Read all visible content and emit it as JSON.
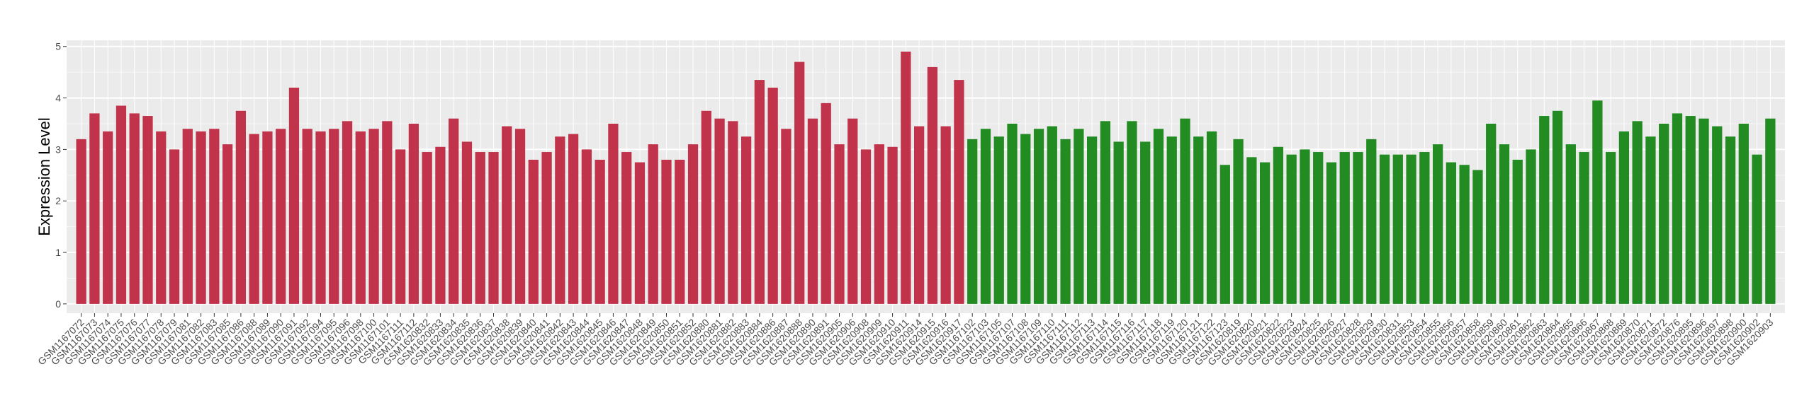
{
  "chart_data": {
    "type": "bar",
    "y_label": "Expression Level",
    "categories": [
      "GSM1167072",
      "GSM1167073",
      "GSM1167074",
      "GSM1167075",
      "GSM1167076",
      "GSM1167077",
      "GSM1167078",
      "GSM1167079",
      "GSM1167081",
      "GSM1167082",
      "GSM1167083",
      "GSM1167085",
      "GSM1167086",
      "GSM1167088",
      "GSM1167089",
      "GSM1167090",
      "GSM1167091",
      "GSM1167092",
      "GSM1167094",
      "GSM1167095",
      "GSM1167096",
      "GSM1167098",
      "GSM1167100",
      "GSM1167101",
      "GSM1167111",
      "GSM1167112",
      "GSM1620832",
      "GSM1620833",
      "GSM1620834",
      "GSM1620835",
      "GSM1620836",
      "GSM1620837",
      "GSM1620838",
      "GSM1620839",
      "GSM1620840",
      "GSM1620841",
      "GSM1620842",
      "GSM1620843",
      "GSM1620844",
      "GSM1620845",
      "GSM1620846",
      "GSM1620847",
      "GSM1620848",
      "GSM1620849",
      "GSM1620850",
      "GSM1620851",
      "GSM1620852",
      "GSM1620880",
      "GSM1620881",
      "GSM1620882",
      "GSM1620883",
      "GSM1620884",
      "GSM1620886",
      "GSM1620887",
      "GSM1620888",
      "GSM1620890",
      "GSM1620891",
      "GSM1620905",
      "GSM1620906",
      "GSM1620908",
      "GSM1620909",
      "GSM1620910",
      "GSM1620911",
      "GSM1620914",
      "GSM1620915",
      "GSM1620916",
      "GSM1620917",
      "GSM1167102",
      "GSM1167103",
      "GSM1167105",
      "GSM1167107",
      "GSM1167108",
      "GSM1167109",
      "GSM1167110",
      "GSM1167111",
      "GSM1167112",
      "GSM1167113",
      "GSM1167114",
      "GSM1167115",
      "GSM1167116",
      "GSM1167117",
      "GSM1167118",
      "GSM1167119",
      "GSM1167120",
      "GSM1167121",
      "GSM1167122",
      "GSM1167123",
      "GSM1620819",
      "GSM1620820",
      "GSM1620821",
      "GSM1620822",
      "GSM1620823",
      "GSM1620824",
      "GSM1620825",
      "GSM1620826",
      "GSM1620827",
      "GSM1620828",
      "GSM1620829",
      "GSM1620830",
      "GSM1620831",
      "GSM1620853",
      "GSM1620854",
      "GSM1620855",
      "GSM1620856",
      "GSM1620857",
      "GSM1620858",
      "GSM1620859",
      "GSM1620860",
      "GSM1620861",
      "GSM1620862",
      "GSM1620863",
      "GSM1620864",
      "GSM1620865",
      "GSM1620866",
      "GSM1620867",
      "GSM1620868",
      "GSM1620869",
      "GSM1620870",
      "GSM1620871",
      "GSM1620872",
      "GSM1620876",
      "GSM1620895",
      "GSM1620896",
      "GSM1620897",
      "GSM1620898",
      "GSM1620900",
      "GSM1620902",
      "GSM1620903"
    ],
    "series": [
      {
        "color": "#c0334a",
        "values": [
          3.2,
          3.7,
          3.35,
          3.85,
          3.7,
          3.65,
          3.35,
          3.0,
          3.4,
          3.35,
          3.4,
          3.1,
          3.75,
          3.3,
          3.35,
          3.4,
          4.2,
          3.4,
          3.35,
          3.4,
          3.55,
          3.35,
          3.4,
          3.55,
          3.0,
          3.5,
          2.95,
          3.05,
          3.6,
          3.15,
          2.95,
          2.95,
          3.45,
          3.4,
          2.8,
          2.95,
          3.25,
          3.3,
          3.0,
          2.8,
          3.5,
          2.95,
          2.75,
          3.1,
          2.8,
          2.8,
          3.1,
          3.75,
          3.6,
          3.55,
          3.25,
          4.35,
          4.2,
          3.4,
          4.7,
          3.6,
          3.9,
          3.1,
          3.6,
          3.0,
          3.1,
          3.05,
          4.9,
          3.45,
          4.6,
          3.45,
          4.35,
          null,
          null,
          null,
          null,
          null,
          null,
          null,
          null,
          null,
          null,
          null,
          null,
          null,
          null,
          null,
          null,
          null,
          null,
          null,
          null,
          null,
          null,
          null,
          null,
          null,
          null,
          null,
          null,
          null,
          null,
          null,
          null,
          null,
          null,
          null,
          null,
          null,
          null,
          null,
          null,
          null,
          null,
          null,
          null,
          null,
          null,
          null,
          null,
          null,
          null,
          null,
          null,
          null,
          null,
          null,
          null,
          null,
          null,
          null,
          null,
          null
        ]
      },
      {
        "color": "#228b22",
        "values": [
          null,
          null,
          null,
          null,
          null,
          null,
          null,
          null,
          null,
          null,
          null,
          null,
          null,
          null,
          null,
          null,
          null,
          null,
          null,
          null,
          null,
          null,
          null,
          null,
          null,
          null,
          null,
          null,
          null,
          null,
          null,
          null,
          null,
          null,
          null,
          null,
          null,
          null,
          null,
          null,
          null,
          null,
          null,
          null,
          null,
          null,
          null,
          null,
          null,
          null,
          null,
          null,
          null,
          null,
          null,
          null,
          null,
          null,
          null,
          null,
          null,
          null,
          null,
          null,
          null,
          null,
          null,
          3.2,
          3.4,
          3.25,
          3.5,
          3.3,
          3.4,
          3.45,
          3.2,
          3.4,
          3.25,
          3.55,
          3.15,
          3.55,
          3.15,
          3.4,
          3.25,
          3.6,
          3.25,
          3.35,
          2.7,
          3.2,
          2.85,
          2.75,
          3.05,
          2.9,
          3.0,
          2.95,
          2.75,
          2.95,
          2.95,
          3.2,
          2.9,
          2.9,
          2.9,
          2.95,
          3.1,
          2.75,
          2.7,
          2.6,
          3.5,
          3.1,
          2.8,
          3.0,
          3.65,
          3.75,
          3.1,
          2.95,
          3.95,
          2.95,
          3.35,
          3.55,
          3.25,
          3.5,
          3.7,
          3.65,
          3.6,
          3.45,
          3.25,
          3.5,
          2.9,
          3.6
        ]
      }
    ],
    "ylim": [
      -0.18,
      5.12
    ],
    "yticks": [
      0,
      1,
      2,
      3,
      4,
      5
    ],
    "grid": true
  }
}
